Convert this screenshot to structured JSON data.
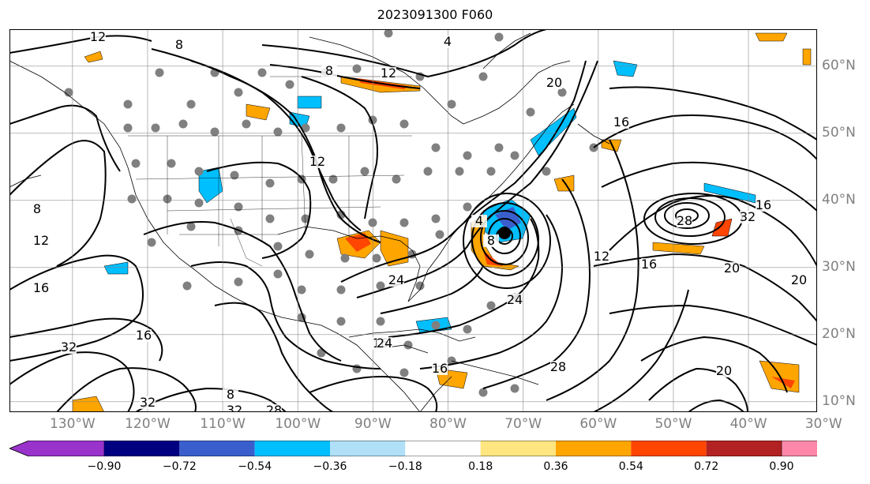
{
  "title": "2023091300 F060",
  "map": {
    "lon_labels": [
      {
        "text": "130°W",
        "lon": -130
      },
      {
        "text": "120°W",
        "lon": -120
      },
      {
        "text": "110°W",
        "lon": -110
      },
      {
        "text": "100°W",
        "lon": -100
      },
      {
        "text": "90°W",
        "lon": -90
      },
      {
        "text": "80°W",
        "lon": -80
      },
      {
        "text": "70°W",
        "lon": -70
      },
      {
        "text": "60°W",
        "lon": -60
      },
      {
        "text": "50°W",
        "lon": -50
      },
      {
        "text": "40°W",
        "lon": -40
      },
      {
        "text": "30°W",
        "lon": -30
      }
    ],
    "lat_labels": [
      {
        "text": "60°N",
        "lat": 60
      },
      {
        "text": "50°N",
        "lat": 50
      },
      {
        "text": "40°N",
        "lat": 40
      },
      {
        "text": "30°N",
        "lat": 30
      },
      {
        "text": "20°N",
        "lat": 20
      },
      {
        "text": "10°N",
        "lat": 10
      }
    ],
    "contour_labels": [
      "12",
      "8",
      "4",
      "8",
      "12",
      "20",
      "16",
      "12",
      "8",
      "12",
      "16",
      "16",
      "32",
      "16",
      "24",
      "32",
      "32",
      "28",
      "8",
      "4",
      "8",
      "12",
      "16",
      "20",
      "24",
      "28",
      "32",
      "16",
      "20",
      "24",
      "28",
      "16",
      "20"
    ],
    "hurricane_center": {
      "lon": -68.5,
      "lat": 34.5
    },
    "high_center": {
      "lon": -40,
      "lat": 37
    }
  },
  "colorbar": {
    "colors": [
      "#9933cc",
      "#000080",
      "#3a5fcd",
      "#00bfff",
      "#b0e0f8",
      "#ffffff",
      "#ffe680",
      "#ffa500",
      "#ff4500",
      "#b22222",
      "#ff88aa"
    ],
    "tick_labels": [
      "−0.90",
      "−0.72",
      "−0.54",
      "−0.36",
      "−0.18",
      "0.18",
      "0.36",
      "0.54",
      "0.72",
      "0.90"
    ]
  }
}
